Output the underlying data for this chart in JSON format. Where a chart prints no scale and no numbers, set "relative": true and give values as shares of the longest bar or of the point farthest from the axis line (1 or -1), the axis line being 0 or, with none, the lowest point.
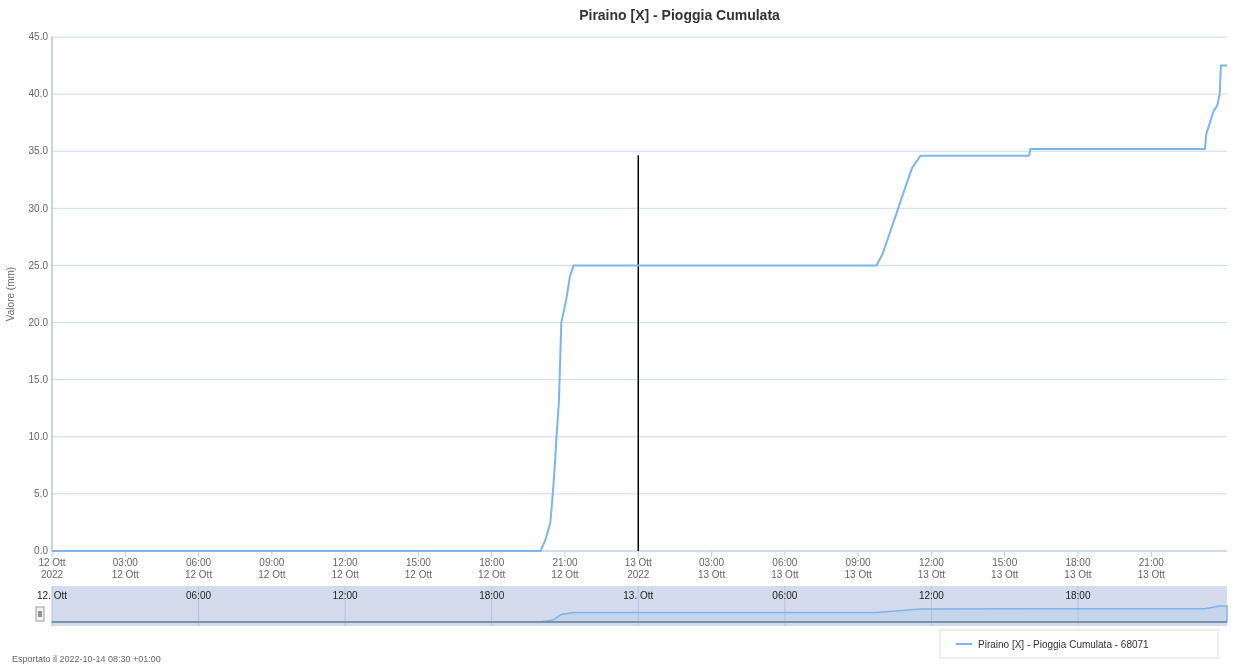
{
  "chart_data": [
    {
      "type": "line",
      "title": "Piraino [X] - Pioggia Cumulata",
      "ylabel": "Valore (mm)",
      "annotations": [
        "Esportato il 2022-10-14 08:30 +01:00"
      ],
      "series": [
        {
          "name": "Piraino [X] - Pioggia Cumulata - 68071",
          "color": "#7cb5ec",
          "x": [
            "2022-10-12T00:00",
            "2022-10-12T20:00",
            "2022-10-12T20:12",
            "2022-10-12T20:24",
            "2022-10-12T20:30",
            "2022-10-12T20:36",
            "2022-10-12T20:39",
            "2022-10-12T20:45",
            "2022-10-12T20:51",
            "2022-10-12T20:57",
            "2022-10-12T21:03",
            "2022-10-12T21:12",
            "2022-10-12T21:21",
            "2022-10-13T09:45",
            "2022-10-13T10:00",
            "2022-10-13T10:24",
            "2022-10-13T10:48",
            "2022-10-13T11:12",
            "2022-10-13T11:33",
            "2022-10-13T16:00",
            "2022-10-13T16:03",
            "2022-10-13T23:12",
            "2022-10-13T23:15",
            "2022-10-13T23:24",
            "2022-10-13T23:33",
            "2022-10-13T23:42",
            "2022-10-13T23:48",
            "2022-10-13T23:51",
            "2022-10-14T00:06"
          ],
          "values": [
            0,
            0,
            1,
            2.5,
            5,
            8,
            10,
            13,
            20,
            21,
            22,
            24,
            25,
            25,
            26,
            28.5,
            31,
            33.5,
            34.6,
            34.6,
            35.2,
            35.2,
            36.5,
            37.5,
            38.5,
            39,
            40,
            42.5,
            42.5
          ]
        }
      ],
      "xlim": [
        "2022-10-12T00:00",
        "2022-10-14T00:06"
      ],
      "xticks": [
        {
          "value": "2022-10-12T00:00",
          "label": "12 Ott\n2022"
        },
        {
          "value": "2022-10-12T03:00",
          "label": "03:00\n12 Ott"
        },
        {
          "value": "2022-10-12T06:00",
          "label": "06:00\n12 Ott"
        },
        {
          "value": "2022-10-12T09:00",
          "label": "09:00\n12 Ott"
        },
        {
          "value": "2022-10-12T12:00",
          "label": "12:00\n12 Ott"
        },
        {
          "value": "2022-10-12T15:00",
          "label": "15:00\n12 Ott"
        },
        {
          "value": "2022-10-12T18:00",
          "label": "18:00\n12 Ott"
        },
        {
          "value": "2022-10-12T21:00",
          "label": "21:00\n12 Ott"
        },
        {
          "value": "2022-10-13T00:00",
          "label": "13 Ott\n2022"
        },
        {
          "value": "2022-10-13T03:00",
          "label": "03:00\n13 Ott"
        },
        {
          "value": "2022-10-13T06:00",
          "label": "06:00\n13 Ott"
        },
        {
          "value": "2022-10-13T09:00",
          "label": "09:00\n13 Ott"
        },
        {
          "value": "2022-10-13T12:00",
          "label": "12:00\n13 Ott"
        },
        {
          "value": "2022-10-13T15:00",
          "label": "15:00\n13 Ott"
        },
        {
          "value": "2022-10-13T18:00",
          "label": "18:00\n13 Ott"
        },
        {
          "value": "2022-10-13T21:00",
          "label": "21:00\n13 Ott"
        }
      ],
      "ylim": [
        0,
        45
      ],
      "yticks": [
        {
          "value": 0,
          "label": "0.0"
        },
        {
          "value": 5,
          "label": "5.0"
        },
        {
          "value": 10,
          "label": "10.0"
        },
        {
          "value": 15,
          "label": "15.0"
        },
        {
          "value": 20,
          "label": "20.0"
        },
        {
          "value": 25,
          "label": "25.0"
        },
        {
          "value": 30,
          "label": "30.0"
        },
        {
          "value": 35,
          "label": "35.0"
        },
        {
          "value": 40,
          "label": "40.0"
        },
        {
          "value": 45,
          "label": "45.0"
        }
      ],
      "grid": "y",
      "legend": "bottom right",
      "marker": "none",
      "line_style": "solid",
      "ref_lines": [
        {
          "axis": "x",
          "value": "2022-10-13T00:00",
          "color": "#000000"
        }
      ]
    },
    {
      "type": "area",
      "relative": true,
      "tick_labels": "x",
      "series": [
        {
          "color": "#7cb5ec",
          "x": [
            "2022-10-12T00:00",
            "2022-10-12T20:00",
            "2022-10-12T20:30",
            "2022-10-12T20:51",
            "2022-10-12T21:21",
            "2022-10-13T09:45",
            "2022-10-13T11:33",
            "2022-10-13T16:00",
            "2022-10-13T23:12",
            "2022-10-13T23:48",
            "2022-10-14T00:06"
          ],
          "values": [
            0,
            0,
            0.12,
            0.47,
            0.59,
            0.59,
            0.81,
            0.83,
            0.83,
            1,
            1
          ]
        }
      ],
      "xlim": [
        "2022-10-12T00:00",
        "2022-10-14T00:06"
      ],
      "xticks": [
        {
          "value": "2022-10-12T00:00",
          "label": "12. Ott"
        },
        {
          "value": "2022-10-12T06:00",
          "label": "06:00"
        },
        {
          "value": "2022-10-12T12:00",
          "label": "12:00"
        },
        {
          "value": "2022-10-12T18:00",
          "label": "18:00"
        },
        {
          "value": "2022-10-13T00:00",
          "label": "13. Ott"
        },
        {
          "value": "2022-10-13T06:00",
          "label": "06:00"
        },
        {
          "value": "2022-10-13T12:00",
          "label": "12:00"
        },
        {
          "value": "2022-10-13T18:00",
          "label": "18:00"
        }
      ],
      "grid": "x",
      "marker": "none",
      "line_style": "solid"
    }
  ]
}
